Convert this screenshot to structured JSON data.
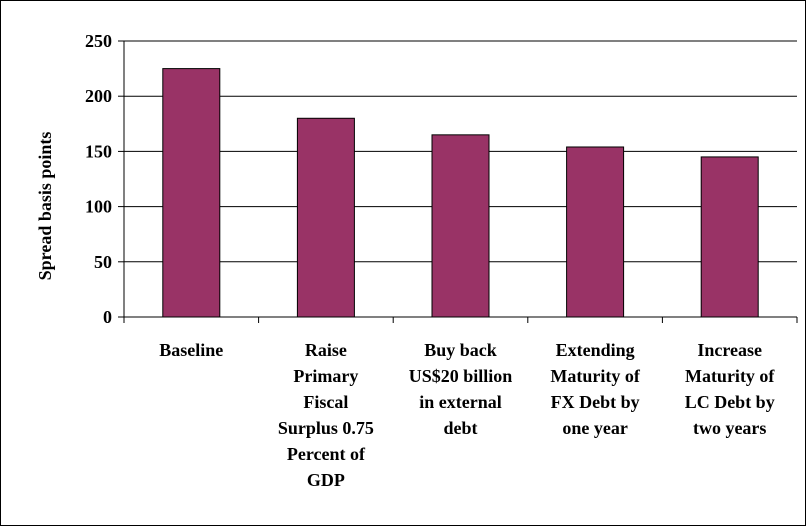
{
  "chart_data": {
    "type": "bar",
    "title": "",
    "xlabel": "",
    "ylabel": "Spread basis points",
    "ylim": [
      0,
      250
    ],
    "yticks": [
      0,
      50,
      100,
      150,
      200,
      250
    ],
    "grid": true,
    "categories": [
      [
        "Baseline"
      ],
      [
        "Raise",
        "Primary",
        "Fiscal",
        "Surplus 0.75",
        "Percent of",
        "GDP"
      ],
      [
        "Buy back",
        "US$20 billion",
        "in external",
        "debt"
      ],
      [
        "Extending",
        "Maturity of",
        "FX Debt by",
        "one year"
      ],
      [
        "Increase",
        "Maturity of",
        "LC Debt by",
        "two years"
      ]
    ],
    "values": [
      225,
      180,
      165,
      154,
      145
    ],
    "bar_color": "#993366",
    "bar_edge_color": "#000000"
  }
}
